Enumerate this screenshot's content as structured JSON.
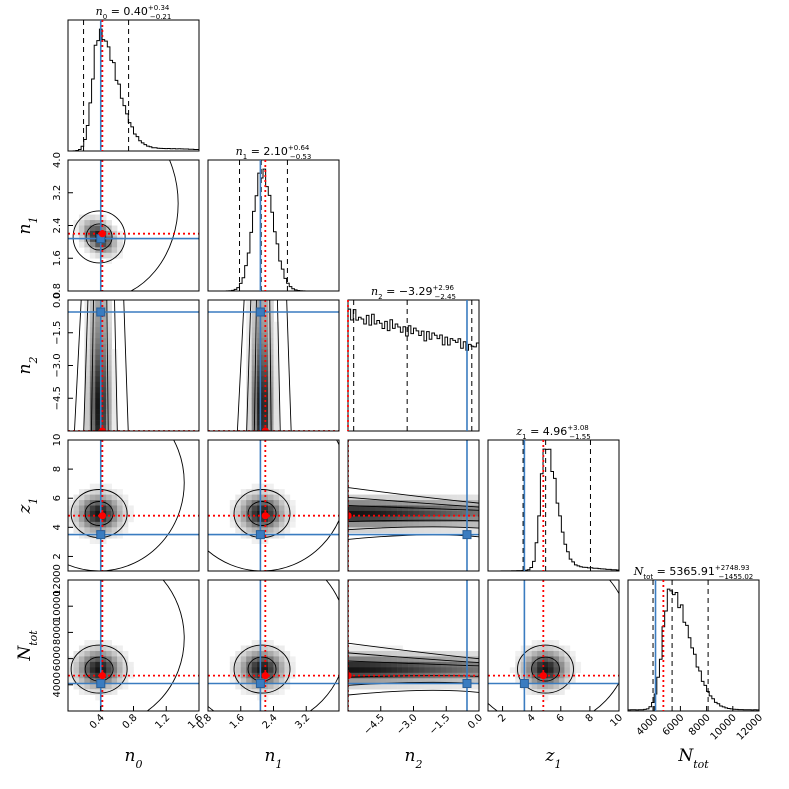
{
  "chart_data": {
    "type": "corner",
    "parameters": [
      {
        "key": "n0",
        "label": "n",
        "sub": "0",
        "range": [
          0.0,
          1.6
        ],
        "ticks": [
          "0.4",
          "0.8",
          "1.2",
          "1.6"
        ],
        "title_value": "0.40",
        "err_plus": "+0.34",
        "err_minus": "−0.21",
        "median": 0.4,
        "lo": 0.19,
        "hi": 0.74,
        "peak": 0.38,
        "true": 0.42,
        "alt": 0.4
      },
      {
        "key": "n1",
        "label": "n",
        "sub": "1",
        "range": [
          0.8,
          4.0
        ],
        "ticks": [
          "0.8",
          "1.6",
          "2.4",
          "3.2",
          "4.0"
        ],
        "ticks_x": [
          "0.8",
          "1.6",
          "2.4",
          "3.2"
        ],
        "title_value": "2.10",
        "err_plus": "+0.64",
        "err_minus": "−0.53",
        "median": 2.1,
        "lo": 1.57,
        "hi": 2.74,
        "peak": 2.12,
        "true": 2.2,
        "alt": 2.08
      },
      {
        "key": "n2",
        "label": "n",
        "sub": "2",
        "range": [
          -6.0,
          0.0
        ],
        "ticks": [
          "−4.5",
          "−3.0",
          "−1.5",
          "0.0"
        ],
        "title_value": "−3.29",
        "err_plus": "+2.96",
        "err_minus": "−2.45",
        "median": -3.29,
        "lo": -5.74,
        "hi": -0.33,
        "peak": -5.8,
        "true": -6.0,
        "alt": -0.55
      },
      {
        "key": "z1",
        "label": "z",
        "sub": "1",
        "range": [
          1.0,
          10.0
        ],
        "ticks": [
          "2",
          "4",
          "6",
          "8",
          "10"
        ],
        "title_value": "4.96",
        "err_plus": "+3.08",
        "err_minus": "−1.55",
        "median": 4.96,
        "lo": 3.41,
        "hi": 8.04,
        "peak": 4.95,
        "true": 4.8,
        "alt": 3.5
      },
      {
        "key": "Ntot",
        "label": "N",
        "sub": "tot",
        "range": [
          2000,
          12000
        ],
        "ticks": [
          "4000",
          "6000",
          "8000",
          "10000",
          "12000"
        ],
        "title_value": "5365.91",
        "err_plus": "+2748.93",
        "err_minus": "−1455.02",
        "median": 5365.91,
        "lo": 3910.89,
        "hi": 8114.84,
        "peak": 5200,
        "true": 4700,
        "alt": 4100
      }
    ],
    "legend": "none",
    "grid": false,
    "colors": {
      "true_value": "#ff0000",
      "alt_value": "#3a7cc0",
      "hist": "#000000",
      "quantile": "#000000"
    }
  }
}
